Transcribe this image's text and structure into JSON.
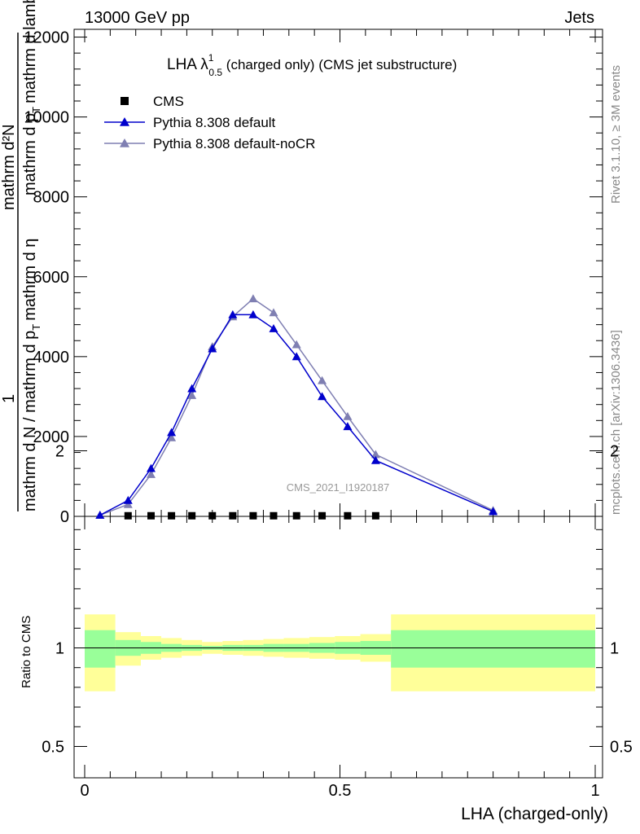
{
  "header": {
    "left": "13000 GeV pp",
    "right": "Jets"
  },
  "side_text": {
    "top": "Rivet 3.1.10, ≥ 3M events",
    "bottom": "mcplots.cern.ch [arXiv:1306.3436]"
  },
  "watermark": "CMS_2021_I1920187",
  "title": {
    "main": "LHA λ",
    "sup": "1",
    "sub": "0.5",
    "rest": " (charged only) (CMS jet substructure)"
  },
  "ylabel": {
    "num": "1",
    "den": "mathrm d N / mathrm d p",
    "den_sub": "T",
    "den_tail": "mathrm d η",
    "rhs_num": "mathrm d²N",
    "rhs_den": "mathrm d p",
    "rhs_den_sub": "T",
    "rhs_den_tail": "mathrm d lambda"
  },
  "xlabel": "LHA (charged-only)",
  "ratio_ylabel": "Ratio to CMS",
  "legend": [
    {
      "label": "CMS",
      "color": "#000000",
      "marker": "square"
    },
    {
      "label": "Pythia 8.308 default",
      "color": "#0000cc",
      "marker": "triangle"
    },
    {
      "label": "Pythia 8.308 default-noCR",
      "color": "#7f7fb2",
      "marker": "triangle"
    }
  ],
  "chart_data": {
    "type": "line",
    "main": {
      "xlim": [
        0,
        1
      ],
      "ylim": [
        0,
        12000
      ],
      "yticks": [
        {
          "v": 0,
          "label": "0"
        },
        {
          "v": 2000,
          "label": "2000"
        },
        {
          "v": 4000,
          "label": "4000"
        },
        {
          "v": 6000,
          "label": "6000"
        },
        {
          "v": 8000,
          "label": "8000"
        },
        {
          "v": 10000,
          "label": "10000"
        },
        {
          "v": 12000,
          "label": "12000"
        }
      ],
      "series": [
        {
          "name": "CMS",
          "type": "scatter",
          "x": [
            0.085,
            0.13,
            0.17,
            0.21,
            0.25,
            0.29,
            0.33,
            0.37,
            0.415,
            0.465,
            0.515,
            0.57
          ],
          "y": [
            5,
            5,
            5,
            5,
            5,
            5,
            5,
            5,
            5,
            5,
            5,
            5
          ]
        },
        {
          "name": "Pythia 8.308 default",
          "type": "line",
          "x": [
            0.03,
            0.085,
            0.13,
            0.17,
            0.21,
            0.25,
            0.29,
            0.33,
            0.37,
            0.415,
            0.465,
            0.515,
            0.57,
            0.8
          ],
          "y": [
            30,
            400,
            1200,
            2100,
            3200,
            4200,
            5050,
            5050,
            4700,
            4000,
            3000,
            2250,
            1400,
            120
          ]
        },
        {
          "name": "Pythia 8.308 default-noCR",
          "type": "line",
          "x": [
            0.03,
            0.085,
            0.13,
            0.17,
            0.21,
            0.25,
            0.29,
            0.33,
            0.37,
            0.415,
            0.465,
            0.515,
            0.57,
            0.8
          ],
          "y": [
            30,
            300,
            1050,
            1970,
            3030,
            4250,
            5000,
            5450,
            5100,
            4300,
            3400,
            2500,
            1550,
            150
          ]
        }
      ]
    },
    "ratio": {
      "xlim": [
        0,
        1
      ],
      "ylim": [
        0.4,
        2.3
      ],
      "yticks": [
        {
          "v": 0.5,
          "label": "0.5"
        },
        {
          "v": 1,
          "label": "1"
        },
        {
          "v": 2,
          "label": "2"
        }
      ],
      "xticks": [
        {
          "v": 0,
          "label": "0"
        },
        {
          "v": 0.5,
          "label": "0.5"
        },
        {
          "v": 1,
          "label": "1"
        }
      ],
      "reference": 1,
      "bands": [
        {
          "x0": 0.0,
          "x1": 0.06,
          "inner": [
            0.9,
            1.09
          ],
          "outer": [
            0.78,
            1.17
          ]
        },
        {
          "x0": 0.06,
          "x1": 0.11,
          "inner": [
            0.96,
            1.04
          ],
          "outer": [
            0.91,
            1.08
          ]
        },
        {
          "x0": 0.11,
          "x1": 0.15,
          "inner": [
            0.97,
            1.03
          ],
          "outer": [
            0.94,
            1.06
          ]
        },
        {
          "x0": 0.15,
          "x1": 0.19,
          "inner": [
            0.98,
            1.02
          ],
          "outer": [
            0.95,
            1.05
          ]
        },
        {
          "x0": 0.19,
          "x1": 0.23,
          "inner": [
            0.985,
            1.015
          ],
          "outer": [
            0.96,
            1.04
          ]
        },
        {
          "x0": 0.23,
          "x1": 0.27,
          "inner": [
            0.99,
            1.01
          ],
          "outer": [
            0.97,
            1.03
          ]
        },
        {
          "x0": 0.27,
          "x1": 0.31,
          "inner": [
            0.985,
            1.015
          ],
          "outer": [
            0.965,
            1.035
          ]
        },
        {
          "x0": 0.31,
          "x1": 0.35,
          "inner": [
            0.985,
            1.015
          ],
          "outer": [
            0.96,
            1.04
          ]
        },
        {
          "x0": 0.35,
          "x1": 0.39,
          "inner": [
            0.98,
            1.02
          ],
          "outer": [
            0.955,
            1.045
          ]
        },
        {
          "x0": 0.39,
          "x1": 0.44,
          "inner": [
            0.98,
            1.02
          ],
          "outer": [
            0.95,
            1.05
          ]
        },
        {
          "x0": 0.44,
          "x1": 0.49,
          "inner": [
            0.975,
            1.025
          ],
          "outer": [
            0.945,
            1.055
          ]
        },
        {
          "x0": 0.49,
          "x1": 0.54,
          "inner": [
            0.97,
            1.03
          ],
          "outer": [
            0.94,
            1.06
          ]
        },
        {
          "x0": 0.54,
          "x1": 0.6,
          "inner": [
            0.965,
            1.035
          ],
          "outer": [
            0.93,
            1.07
          ]
        },
        {
          "x0": 0.6,
          "x1": 1.0,
          "inner": [
            0.9,
            1.09
          ],
          "outer": [
            0.78,
            1.17
          ]
        }
      ],
      "colors": {
        "inner": "#99ff99",
        "outer": "#ffff99"
      }
    }
  }
}
